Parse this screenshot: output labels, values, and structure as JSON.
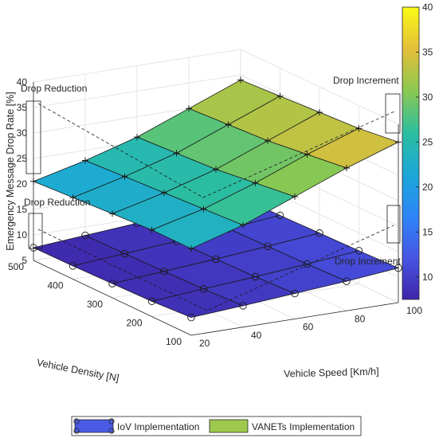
{
  "chart_data": {
    "type": "surface",
    "xlabel": "Vehicle Speed [Km/h]",
    "ylabel": "Vehicle Density [N]",
    "zlabel": "Emergency Message Drop Rate [%]",
    "x_ticks": [
      "20",
      "40",
      "60",
      "80",
      "100"
    ],
    "y_ticks": [
      "100",
      "200",
      "300",
      "400",
      "500"
    ],
    "z_ticks": [
      "5",
      "10",
      "15",
      "20",
      "25",
      "30",
      "35",
      "40"
    ],
    "colorbar_ticks": [
      "10",
      "15",
      "20",
      "25",
      "30",
      "35",
      "40"
    ],
    "colorbar_range": [
      7.5,
      40
    ],
    "zlim": [
      5,
      40
    ],
    "x": [
      20,
      40,
      60,
      80,
      100
    ],
    "y": [
      100,
      200,
      300,
      400,
      500
    ],
    "series": [
      {
        "name": "IoV Implementation",
        "marker": "circle",
        "z": [
          [
            8.5,
            9.2,
            10.0,
            10.8,
            11.8
          ],
          [
            8.0,
            8.8,
            9.6,
            10.5,
            11.5
          ],
          [
            7.8,
            8.6,
            9.4,
            10.3,
            11.3
          ],
          [
            7.6,
            8.4,
            9.2,
            10.1,
            11.1
          ],
          [
            7.5,
            8.3,
            9.1,
            10.0,
            11.0
          ]
        ]
      },
      {
        "name": "VANETs Implementation",
        "marker": "plus",
        "z": [
          [
            22.0,
            25.0,
            29.0,
            33.0,
            36.5
          ],
          [
            22.0,
            24.5,
            28.0,
            32.0,
            35.5
          ],
          [
            21.5,
            24.0,
            27.0,
            31.0,
            35.0
          ],
          [
            21.0,
            23.5,
            26.5,
            30.5,
            34.5
          ],
          [
            20.5,
            23.0,
            26.0,
            30.0,
            34.0
          ]
        ]
      }
    ],
    "annotations": [
      {
        "text": "Drop Reduction"
      },
      {
        "text": "Drop Reduction"
      },
      {
        "text": "Drop Increment"
      },
      {
        "text": "Drop Increment"
      }
    ],
    "colors": {
      "colormap": [
        "#3e26a8",
        "#4755e5",
        "#2d85f8",
        "#1ba8d8",
        "#2cbe9f",
        "#8bc850",
        "#e5be3a",
        "#f9fb15"
      ],
      "iov_legend": "#4a5ae6",
      "vanet_legend": "#9ec94c"
    },
    "legend_position": "bottom"
  }
}
